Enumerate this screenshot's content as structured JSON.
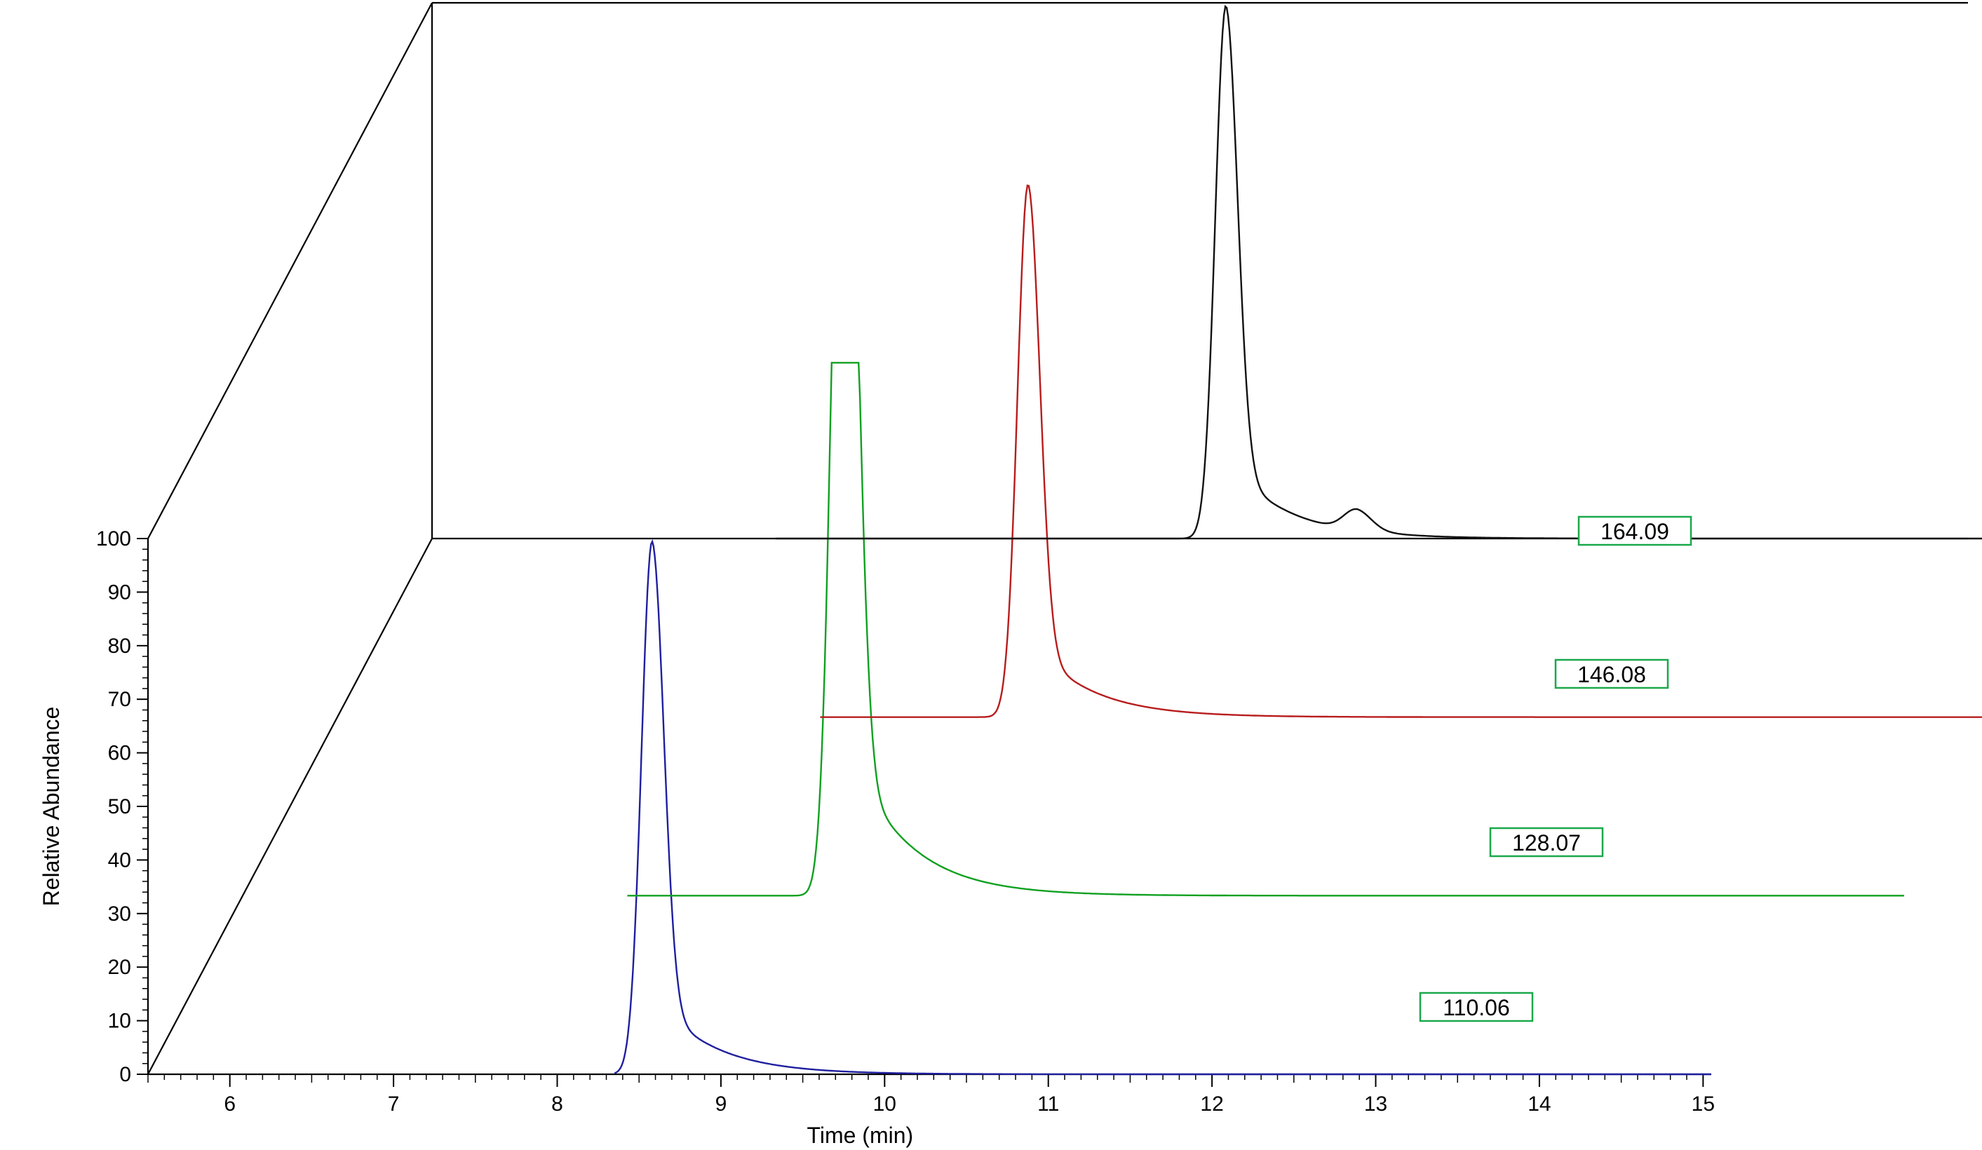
{
  "chart_data": {
    "type": "line",
    "title": "",
    "xlabel": "Time (min)",
    "ylabel": "Relative Abundance",
    "xlim": [
      5.5,
      15.05
    ],
    "ylim": [
      0,
      100
    ],
    "x_ticks": [
      "6",
      "7",
      "8",
      "9",
      "10",
      "11",
      "12",
      "13",
      "14",
      "15"
    ],
    "y_ticks": [
      "0",
      "10",
      "20",
      "30",
      "40",
      "50",
      "60",
      "70",
      "80",
      "90",
      "100"
    ],
    "grid": false,
    "layout": "stacked 3D waterfall",
    "series": [
      {
        "name": "110.06",
        "color": "#1f1fa0",
        "depth": 0,
        "x_range": [
          8.35,
          15.05
        ],
        "baseline": 0,
        "peaks": [
          {
            "x": 8.58,
            "y": 100
          }
        ]
      },
      {
        "name": "128.07",
        "color": "#10a020",
        "depth": 1,
        "x_range": [
          7.85,
          15.65
        ],
        "baseline": 0,
        "peaks": [
          {
            "x": 9.15,
            "y": 100
          },
          {
            "x": 9.2,
            "y": 98
          }
        ]
      },
      {
        "name": "146.08",
        "color": "#b81c1c",
        "depth": 2,
        "x_range": [
          8.45,
          16.25
        ],
        "baseline": 0,
        "peaks": [
          {
            "x": 9.72,
            "y": 100
          }
        ]
      },
      {
        "name": "164.09",
        "color": "#111111",
        "depth": 3,
        "x_range": [
          7.6,
          15.3
        ],
        "baseline": 0,
        "peaks": [
          {
            "x": 10.35,
            "y": 100
          },
          {
            "x": 11.15,
            "y": 4
          }
        ]
      }
    ]
  }
}
